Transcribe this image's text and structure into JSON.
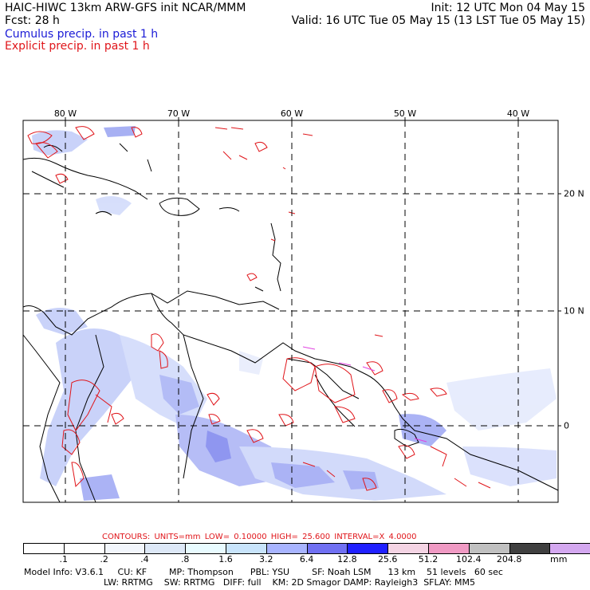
{
  "header": {
    "left_line1": "HAIC-HIWC 13km ARW-GFS init    NCAR/MMM",
    "left_line2": "Fcst:    28 h",
    "right_line1": "Init: 12 UTC Mon 04 May 15",
    "right_line2": "Valid: 16 UTC Tue 05 May 15 (13 LST Tue 05 May 15)",
    "legend_cumulus": "Cumulus precip. in past 1 h",
    "legend_explicit": "Explicit precip. in past 1 h"
  },
  "map": {
    "lon_labels": [
      "80 W",
      "70 W",
      "60 W",
      "50 W",
      "40 W"
    ],
    "lat_labels": [
      "20 N",
      "10 N",
      "0"
    ]
  },
  "contour_info": "CONTOURS:  UNITS=mm  LOW= 0.10000      HIGH=  25.600      INTERVAL=X  4.0000",
  "colorbar": {
    "colors": [
      "#ffffff",
      "#ffffff",
      "#f2f6fc",
      "#dde8f7",
      "#e8fbff",
      "#c8e4fb",
      "#a8b4ff",
      "#7070f2",
      "#2020ff",
      "#f4d4e4",
      "#f09ac4",
      "#c0c0c0",
      "#404040",
      "#d4a8f0"
    ],
    "tick_labels": [
      ".1",
      ".2",
      ".4",
      ".8",
      "1.6",
      "3.2",
      "6.4",
      "12.8",
      "25.6",
      "51.2",
      "102.4",
      "204.8"
    ],
    "units": "mm"
  },
  "model_info": {
    "line1": "Model Info: V3.6.1     CU: KF        MP: Thompson      PBL: YSU        SF: Noah LSM      13 km    51 levels   60 sec",
    "line2": "LW: RRTMG    SW: RRTMG   DIFF: full    KM: 2D Smagor DAMP: Rayleigh3  SFLAY: MM5"
  }
}
